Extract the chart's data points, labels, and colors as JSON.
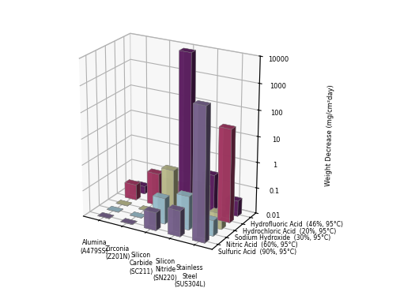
{
  "materials": [
    "Alumina\n(A479SS)",
    "Zirconia\n(Z201N)",
    "Silicon\nCarbide\n(SC211)",
    "Silicon\nNitride\n(SN220)",
    "Stainless\nSteel\n(SUS304L)"
  ],
  "acid_labels": [
    "Hydrofluoric Acid  (46%, 95°C)",
    "Hydrochloric Acid  (20%, 95°C)",
    "Sodium Hydroxide  (30%, 95°C)",
    "Nitric Acid  (60%, 95°C)",
    "Sulfuric Acid  (90%, 95°C)"
  ],
  "colors": [
    "#6b2570",
    "#b84070",
    "#d4d4a0",
    "#b0d8e8",
    "#8870a0"
  ],
  "ylabel": "Weight Decrease (mg/cm²day)",
  "values": [
    [
      0.02,
      0.05,
      8000,
      0.25,
      0.04
    ],
    [
      0.04,
      0.18,
      0.1,
      0.13,
      40.0
    ],
    [
      0.01,
      0.01,
      0.7,
      0.3,
      0.04
    ],
    [
      0.01,
      0.01,
      0.1,
      0.2,
      0.04
    ],
    [
      0.01,
      0.01,
      0.05,
      0.1,
      1200
    ]
  ],
  "note": "values[acid_index][material_index]: Hydrofluoric, Hydrochloric, Sodium Hydroxide, Nitric, Sulfuric",
  "zlim": [
    0.01,
    10000
  ],
  "zticks": [
    0.01,
    0.1,
    1,
    10,
    100,
    1000,
    10000
  ]
}
